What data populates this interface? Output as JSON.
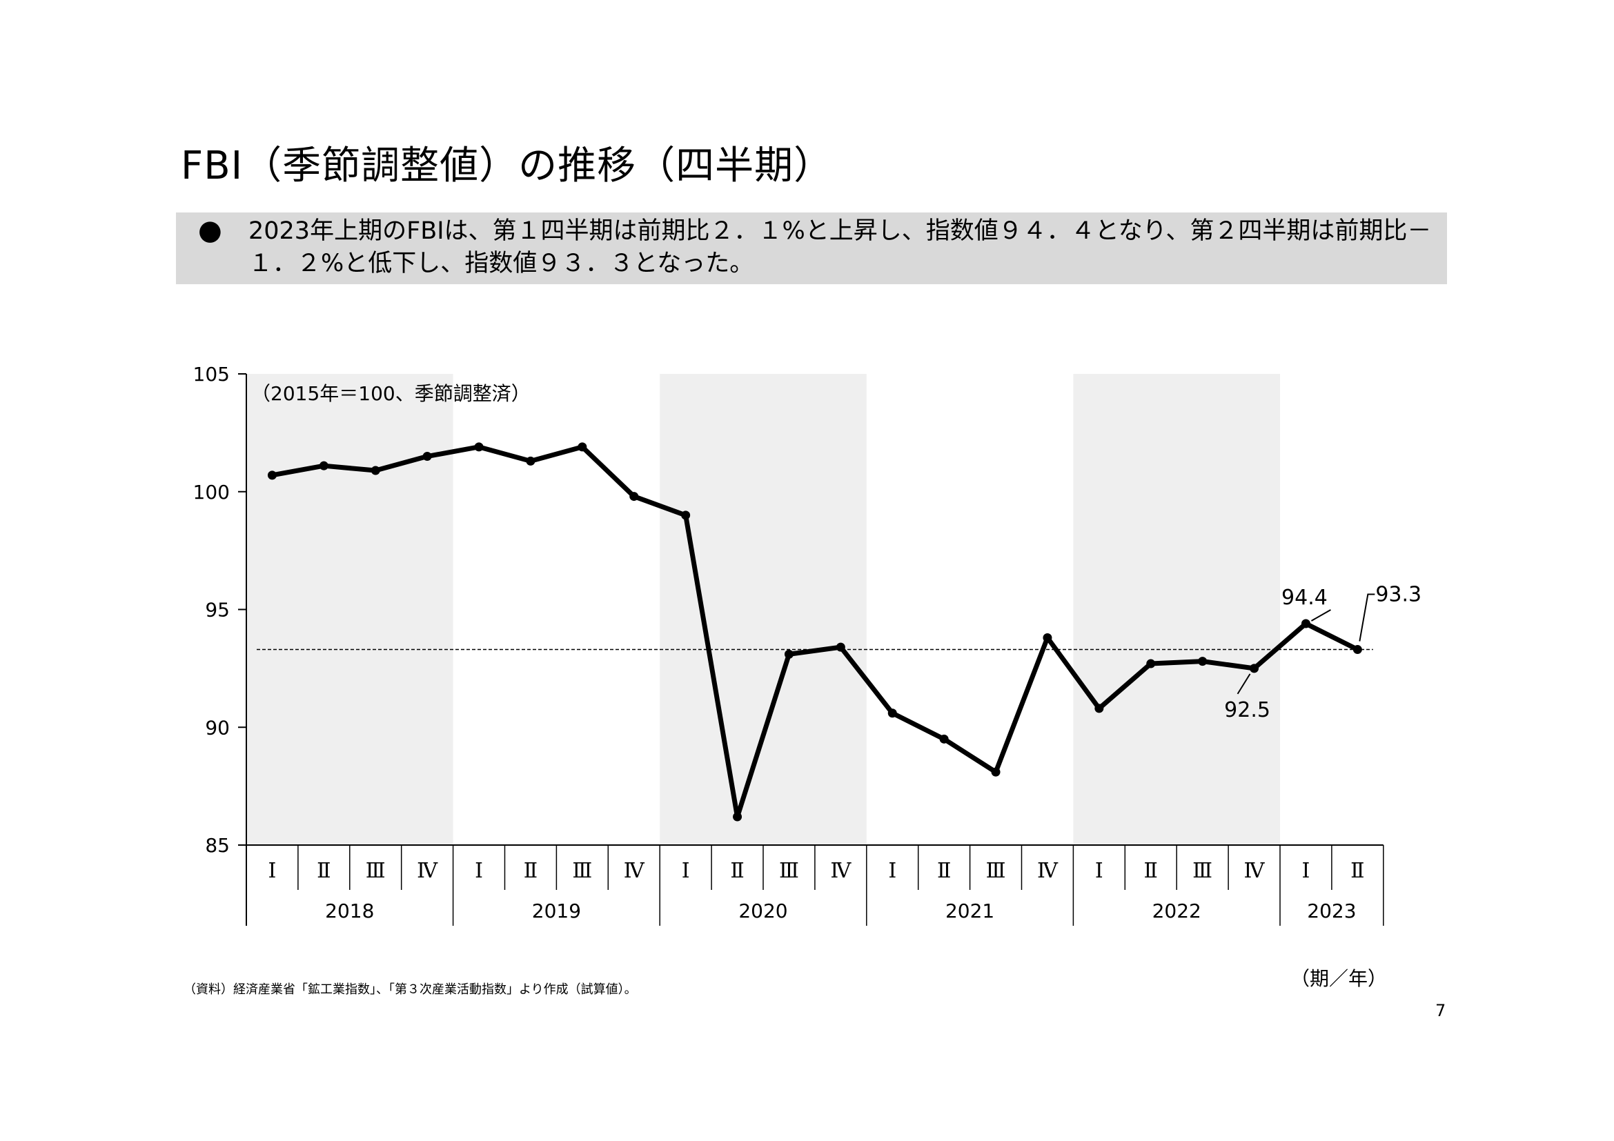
{
  "page": {
    "title": "FBI（季節調整値）の推移（四半期）",
    "summary": "2023年上期のFBIは、第１四半期は前期比２．１%と上昇し、指数値９４．４となり、第２四半期は前期比－１．２%と低下し、指数値９３．３となった。",
    "bullet_icon": "filled-circle-bullet-icon",
    "source_note": "（資料）経済産業省「鉱工業指数」、「第３次産業活動指数」より作成（試算値）。",
    "axis_unit": "（期／年）",
    "page_number": "7"
  },
  "chart_data": {
    "type": "line",
    "unit_note": "（2015年＝100、季節調整済）",
    "ylim": [
      85,
      105
    ],
    "yticks": [
      85,
      90,
      95,
      100,
      105
    ],
    "quarter_labels": [
      "Ⅰ",
      "Ⅱ",
      "Ⅲ",
      "Ⅳ",
      "Ⅰ",
      "Ⅱ",
      "Ⅲ",
      "Ⅳ",
      "Ⅰ",
      "Ⅱ",
      "Ⅲ",
      "Ⅳ",
      "Ⅰ",
      "Ⅱ",
      "Ⅲ",
      "Ⅳ",
      "Ⅰ",
      "Ⅱ",
      "Ⅲ",
      "Ⅳ",
      "Ⅰ",
      "Ⅱ"
    ],
    "years": [
      {
        "label": "2018",
        "quarters": 4,
        "shaded": true
      },
      {
        "label": "2019",
        "quarters": 4,
        "shaded": false
      },
      {
        "label": "2020",
        "quarters": 4,
        "shaded": true
      },
      {
        "label": "2021",
        "quarters": 4,
        "shaded": false
      },
      {
        "label": "2022",
        "quarters": 4,
        "shaded": true
      },
      {
        "label": "2023",
        "quarters": 2,
        "shaded": false
      }
    ],
    "values": [
      100.7,
      101.1,
      100.9,
      101.5,
      101.9,
      101.3,
      101.9,
      99.8,
      99.0,
      86.2,
      93.1,
      93.4,
      90.6,
      89.5,
      88.1,
      93.8,
      90.8,
      92.7,
      92.8,
      92.5,
      94.4,
      93.3
    ],
    "reference_line": 93.3,
    "data_labels": [
      {
        "index": 19,
        "text": "92.5"
      },
      {
        "index": 20,
        "text": "94.4"
      },
      {
        "index": 21,
        "text": "93.3"
      }
    ],
    "colors": {
      "line": "#000000",
      "shade": "#efefef",
      "reference": "#000000"
    }
  }
}
